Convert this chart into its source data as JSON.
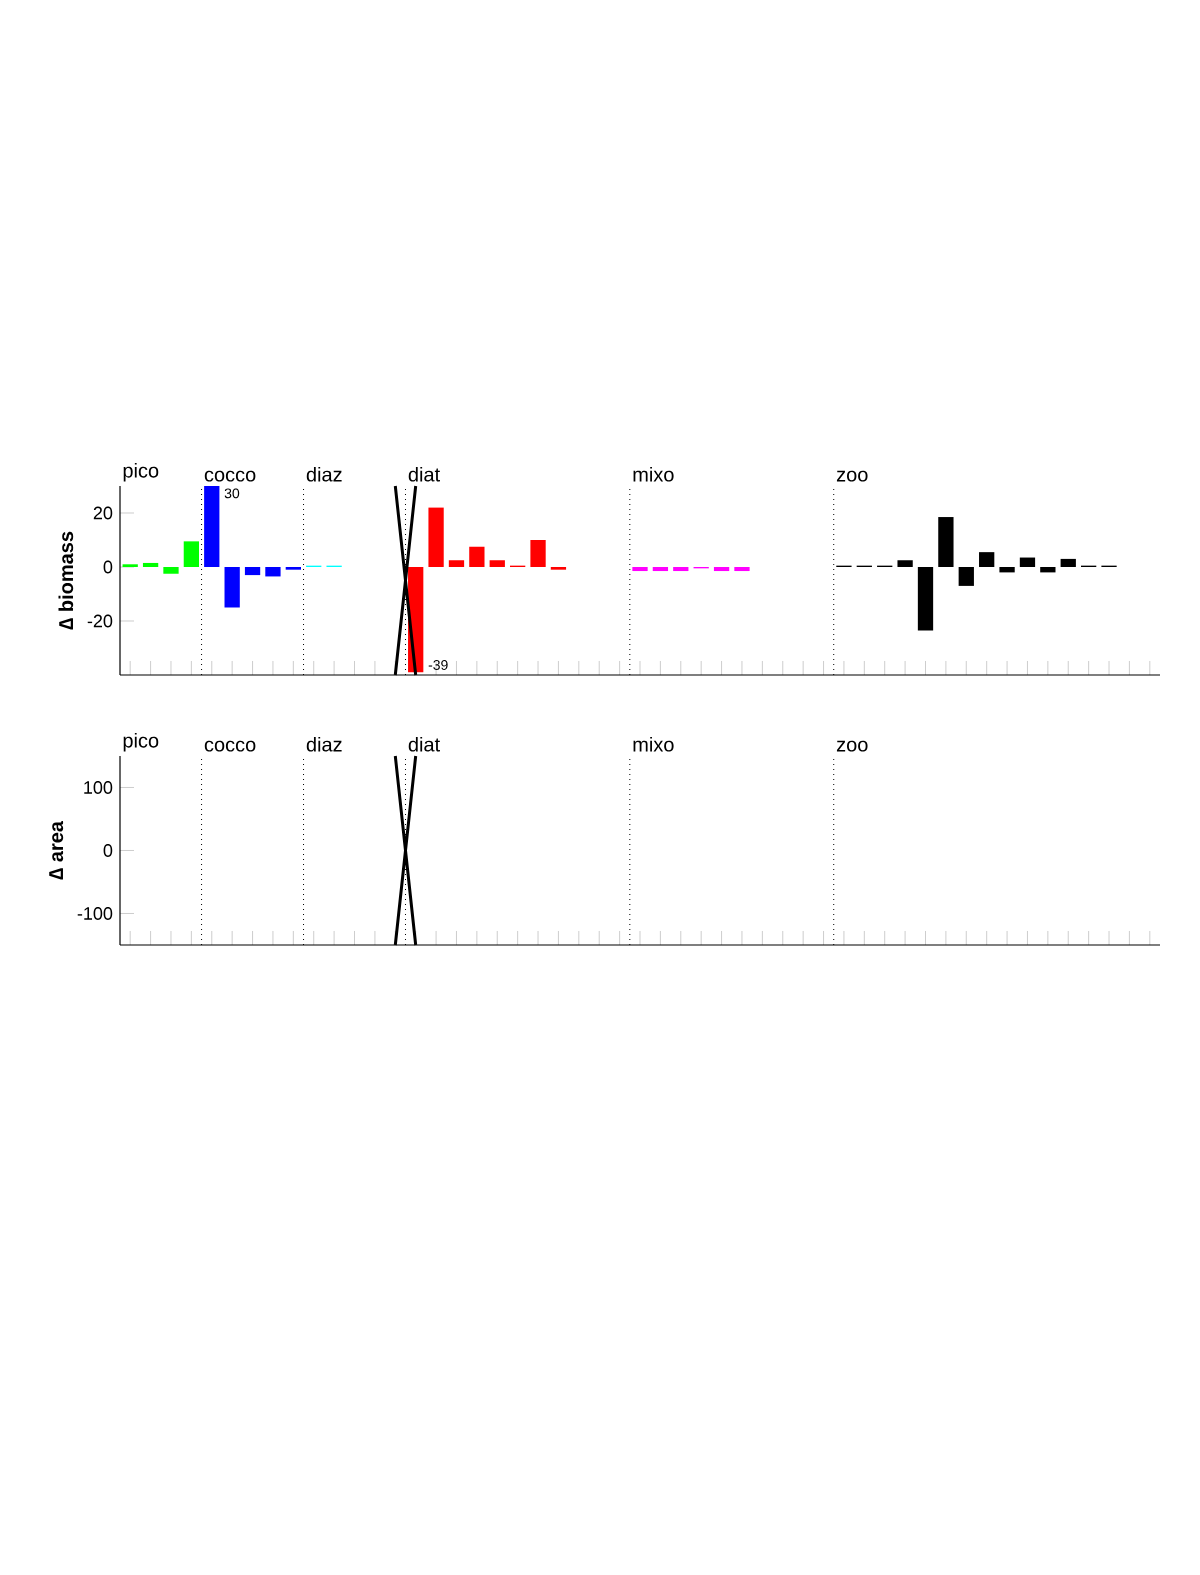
{
  "chart_data": [
    {
      "type": "bar",
      "ylabel": "∆ biomass",
      "categories": [
        null,
        null,
        null,
        null,
        null,
        null,
        null,
        null,
        null,
        null,
        null,
        null,
        null,
        null,
        null,
        null,
        null,
        null,
        null,
        null,
        null,
        null,
        null,
        null,
        null,
        null,
        null,
        null,
        null,
        null,
        null,
        null,
        null,
        null,
        null,
        null,
        null,
        null,
        null,
        null,
        null,
        null,
        null,
        null,
        null,
        null,
        null,
        null,
        null,
        null,
        null
      ],
      "values": [
        1,
        1.5,
        -2.5,
        9.5,
        30,
        -15,
        -3,
        -3.5,
        -1,
        0.5,
        0.5,
        0,
        0,
        0,
        -39,
        22,
        2.5,
        7.5,
        2.5,
        0.5,
        10,
        -1,
        0,
        0,
        0,
        -1.5,
        -1.5,
        -1.5,
        -0.5,
        -1.5,
        -1.5,
        0,
        0,
        0,
        0,
        0.5,
        0.5,
        0.5,
        2.5,
        -23.5,
        18.5,
        -7,
        5.5,
        -2,
        3.5,
        -2,
        3,
        0.5,
        0.5,
        0,
        0
      ],
      "colors": [
        "#00ff00",
        "#00ff00",
        "#00ff00",
        "#00ff00",
        "#0000ff",
        "#0000ff",
        "#0000ff",
        "#0000ff",
        "#0000ff",
        "#00ffff",
        "#00ffff",
        "#00ffff",
        "#00ffff",
        "#00ffff",
        "#ff0000",
        "#ff0000",
        "#ff0000",
        "#ff0000",
        "#ff0000",
        "#ff0000",
        "#ff0000",
        "#ff0000",
        "#ff0000",
        "#ff0000",
        "#ff0000",
        "#ff00ff",
        "#ff00ff",
        "#ff00ff",
        "#ff00ff",
        "#ff00ff",
        "#ff00ff",
        "#ff00ff",
        "#ff00ff",
        "#ff00ff",
        "#ff00ff",
        "#000000",
        "#000000",
        "#000000",
        "#000000",
        "#000000",
        "#000000",
        "#000000",
        "#000000",
        "#000000",
        "#000000",
        "#000000",
        "#000000",
        "#000000",
        "#000000",
        "#000000",
        "#000000"
      ],
      "value_labels": [
        null,
        null,
        null,
        null,
        "30",
        null,
        null,
        null,
        null,
        null,
        null,
        null,
        null,
        null,
        "-39",
        null,
        null,
        null,
        null,
        null,
        null,
        null,
        null,
        null,
        null,
        null,
        null,
        null,
        null,
        null,
        null,
        null,
        null,
        null,
        null,
        null,
        null,
        null,
        null,
        null,
        null,
        null,
        null,
        null,
        null,
        null,
        null,
        null,
        null,
        null,
        null
      ],
      "ylim": [
        -40,
        30
      ],
      "yticks": [
        -20,
        0,
        20
      ],
      "tick_labels": "y",
      "annotations": [
        "pico",
        "cocco",
        "diaz",
        "diat",
        "mixo",
        "zoo"
      ]
    },
    {
      "type": "bar",
      "ylabel": "∆ area",
      "categories": [
        null,
        null,
        null,
        null,
        null,
        null,
        null,
        null,
        null,
        null,
        null,
        null,
        null,
        null,
        null,
        null,
        null,
        null,
        null,
        null,
        null,
        null,
        null,
        null,
        null,
        null,
        null,
        null,
        null,
        null,
        null,
        null,
        null,
        null,
        null,
        null,
        null,
        null,
        null,
        null,
        null,
        null,
        null,
        null,
        null,
        null,
        null,
        null,
        null,
        null,
        null
      ],
      "values": [
        0,
        0,
        0,
        0,
        0,
        0,
        0,
        0,
        0,
        0,
        0,
        0,
        0,
        0,
        0,
        0,
        0,
        0,
        0,
        0,
        0,
        0,
        0,
        0,
        0,
        0,
        0,
        0,
        0,
        0,
        0,
        0,
        0,
        0,
        0,
        0,
        0,
        0,
        0,
        0,
        0,
        0,
        0,
        0,
        0,
        0,
        0,
        0,
        0,
        0,
        0
      ],
      "colors": [
        "#00ff00",
        "#00ff00",
        "#00ff00",
        "#00ff00",
        "#0000ff",
        "#0000ff",
        "#0000ff",
        "#0000ff",
        "#0000ff",
        "#00ffff",
        "#00ffff",
        "#00ffff",
        "#00ffff",
        "#00ffff",
        "#ff0000",
        "#ff0000",
        "#ff0000",
        "#ff0000",
        "#ff0000",
        "#ff0000",
        "#ff0000",
        "#ff0000",
        "#ff0000",
        "#ff0000",
        "#ff0000",
        "#ff00ff",
        "#ff00ff",
        "#ff00ff",
        "#ff00ff",
        "#ff00ff",
        "#ff00ff",
        "#ff00ff",
        "#ff00ff",
        "#ff00ff",
        "#ff00ff",
        "#000000",
        "#000000",
        "#000000",
        "#000000",
        "#000000",
        "#000000",
        "#000000",
        "#000000",
        "#000000",
        "#000000",
        "#000000",
        "#000000",
        "#000000",
        "#000000",
        "#000000",
        "#000000"
      ],
      "ylim": [
        -150,
        150
      ],
      "yticks": [
        -100,
        0,
        100
      ],
      "tick_labels": "y",
      "annotations": [
        "pico",
        "cocco",
        "diaz",
        "diat",
        "mixo",
        "zoo"
      ]
    }
  ]
}
